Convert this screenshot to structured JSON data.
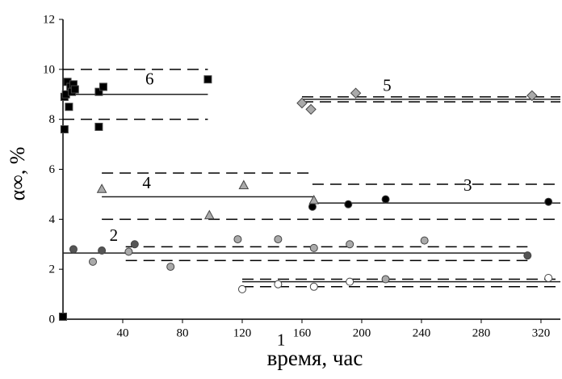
{
  "chart_data": {
    "type": "scatter",
    "xlabel": "время, час",
    "ylabel": "α∞, %",
    "xlim": [
      0,
      333
    ],
    "ylim": [
      0,
      12
    ],
    "xticks": [
      40,
      80,
      120,
      160,
      200,
      240,
      280,
      320
    ],
    "yticks": [
      0,
      2,
      4,
      6,
      8,
      10,
      12
    ],
    "series": [
      {
        "name": "1",
        "color": "#ffffff",
        "marker": "circle",
        "x": [
          120,
          144,
          168,
          192,
          325
        ],
        "values": [
          1.2,
          1.4,
          1.3,
          1.5,
          1.65
        ],
        "mean": 1.5,
        "upper": 1.6,
        "lower": 1.3,
        "span": [
          120,
          333
        ],
        "label_at": [
          146,
          -0.9
        ]
      },
      {
        "name": "2",
        "color": "#555555",
        "marker": "circle",
        "x": [
          7,
          26,
          48,
          311,
          20,
          44,
          72,
          117,
          144,
          168,
          192,
          216,
          242
        ],
        "values": [
          2.8,
          2.75,
          3.0,
          2.55,
          2.3,
          2.7,
          2.1,
          3.2,
          3.2,
          2.85,
          3.0,
          1.6,
          3.15
        ],
        "point_colors": [
          "#555555",
          "#555555",
          "#555555",
          "#555555",
          "#aaaaaa",
          "#aaaaaa",
          "#aaaaaa",
          "#aaaaaa",
          "#aaaaaa",
          "#aaaaaa",
          "#aaaaaa",
          "#aaaaaa",
          "#aaaaaa"
        ],
        "mean": 2.65,
        "upper": 2.9,
        "lower": 2.35,
        "span": [
          0,
          311
        ],
        "band_span": [
          42,
          311
        ],
        "label_at": [
          34,
          3.3
        ]
      },
      {
        "name": "3",
        "color": "#000000",
        "marker": "circle",
        "x": [
          167,
          191,
          216,
          325
        ],
        "values": [
          4.5,
          4.6,
          4.8,
          4.7
        ],
        "mean": 4.65,
        "upper": 5.4,
        "lower": 4.0,
        "span": [
          167,
          333
        ],
        "label_at": [
          271,
          5.3
        ]
      },
      {
        "name": "4",
        "color": "#aaaaaa",
        "marker": "triangle",
        "x": [
          26,
          98,
          121,
          168
        ],
        "values": [
          5.2,
          4.15,
          5.35,
          4.75
        ],
        "mean": 4.9,
        "upper": 5.85,
        "lower": 4.0,
        "span": [
          26,
          168
        ],
        "label_at": [
          56,
          5.4
        ]
      },
      {
        "name": "5",
        "color": "#aaaaaa",
        "marker": "diamond",
        "x": [
          160,
          166,
          196,
          314
        ],
        "values": [
          8.65,
          8.4,
          9.05,
          8.95
        ],
        "mean": 8.8,
        "upper": 8.9,
        "lower": 8.7,
        "span": [
          160,
          333
        ],
        "label_at": [
          217,
          9.3
        ]
      },
      {
        "name": "6",
        "color": "#000000",
        "marker": "square",
        "x": [
          0,
          1,
          1,
          2,
          3,
          4,
          5,
          6,
          7,
          8,
          24,
          24,
          27,
          97
        ],
        "values": [
          0.1,
          7.6,
          8.9,
          9.0,
          9.5,
          8.5,
          9.3,
          9.1,
          9.4,
          9.2,
          9.1,
          7.7,
          9.3,
          9.6
        ],
        "mean": 9.0,
        "upper": 10.0,
        "lower": 8.0,
        "span": [
          0,
          97
        ],
        "label_at": [
          58,
          9.55
        ]
      }
    ]
  }
}
